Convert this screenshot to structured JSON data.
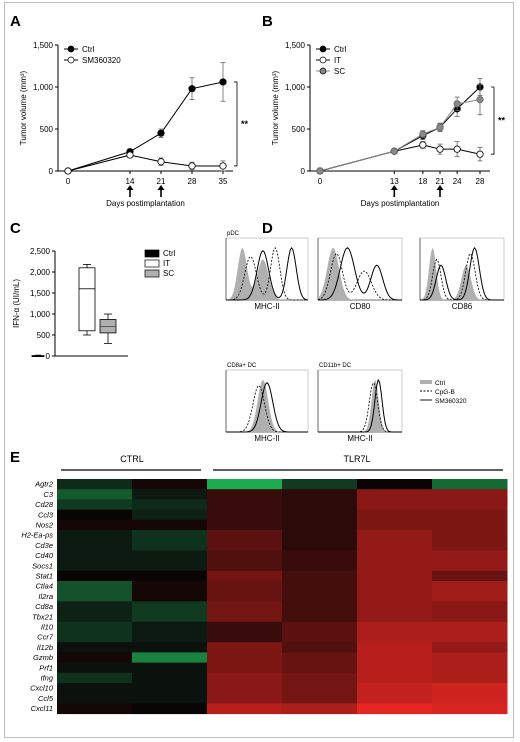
{
  "panels": {
    "A": {
      "letter": "A"
    },
    "B": {
      "letter": "B"
    },
    "C": {
      "letter": "C"
    },
    "D": {
      "letter": "D"
    },
    "E": {
      "letter": "E"
    }
  },
  "colors": {
    "black": "#000000",
    "gray": "#888888",
    "light_gray": "#bdbdbd",
    "heat_green": "#1fa84a",
    "heat_red": "#e5302a"
  },
  "chart_data": [
    {
      "panel": "A",
      "type": "line",
      "xlabel": "Days postimplantation",
      "ylabel": "Tumor volume (mm³)",
      "x": [
        0,
        14,
        21,
        28,
        35
      ],
      "xticks": [
        "0",
        "14",
        "21",
        "28",
        "35"
      ],
      "yticks": [
        "0",
        "500",
        "1,000",
        "1,500"
      ],
      "ylim": [
        0,
        1500
      ],
      "arrows_at": [
        14,
        21
      ],
      "series": [
        {
          "name": "Ctrl",
          "marker": "filled",
          "values": [
            0,
            230,
            450,
            980,
            1060
          ],
          "err": [
            0,
            20,
            50,
            130,
            230
          ]
        },
        {
          "name": "SM360320",
          "marker": "open",
          "values": [
            0,
            190,
            110,
            60,
            60
          ],
          "err": [
            0,
            20,
            45,
            45,
            60
          ]
        }
      ],
      "significance": "**",
      "legend": "top-left"
    },
    {
      "panel": "B",
      "type": "line",
      "xlabel": "Days postimplantation",
      "ylabel": "Tumor volume (mm³)",
      "x": [
        0,
        13,
        18,
        21,
        24,
        28
      ],
      "xticks": [
        "0",
        "13",
        "18",
        "21",
        "24",
        "28"
      ],
      "yticks": [
        "0",
        "500",
        "1,000",
        "1,500"
      ],
      "ylim": [
        0,
        1500
      ],
      "arrows_at": [
        13,
        21
      ],
      "series": [
        {
          "name": "Ctrl",
          "marker": "filled",
          "values": [
            0,
            235,
            420,
            520,
            740,
            1000
          ],
          "err": [
            0,
            20,
            45,
            50,
            90,
            100
          ]
        },
        {
          "name": "IT",
          "marker": "open",
          "values": [
            0,
            235,
            310,
            260,
            260,
            200
          ],
          "err": [
            0,
            20,
            40,
            60,
            90,
            80
          ]
        },
        {
          "name": "SC",
          "marker": "gray",
          "values": [
            0,
            235,
            440,
            520,
            800,
            850
          ],
          "err": [
            0,
            20,
            40,
            40,
            80,
            180
          ]
        }
      ],
      "significance": "**",
      "legend": "top-left"
    },
    {
      "panel": "C",
      "type": "box",
      "ylabel": "IFN-α (UI/mL)",
      "yticks": [
        "0",
        "500",
        "1,000",
        "1,500",
        "2,000",
        "2,500"
      ],
      "ylim": [
        0,
        2500
      ],
      "series": [
        {
          "name": "Ctrl",
          "fill": "#000000",
          "min": 0,
          "q1": 0,
          "median": 0,
          "q3": 10,
          "max": 20
        },
        {
          "name": "IT",
          "fill": "#ffffff",
          "min": 500,
          "q1": 600,
          "median": 1600,
          "q3": 2100,
          "max": 2180
        },
        {
          "name": "SC",
          "fill": "#b0b0b0",
          "min": 300,
          "q1": 550,
          "median": 700,
          "q3": 870,
          "max": 1000
        }
      ],
      "legend": "top-right"
    },
    {
      "panel": "D",
      "type": "histogram",
      "groups": [
        {
          "label": "pDC",
          "plots": [
            "MHC-II",
            "CD80",
            "CD86"
          ]
        },
        {
          "label": "CD8a+ DC",
          "plots": [
            "MHC-II"
          ]
        },
        {
          "label": "CD11b+ DC",
          "plots": [
            "MHC-II"
          ]
        }
      ],
      "legend": [
        {
          "name": "Ctrl",
          "style": "gray-filled"
        },
        {
          "name": "CpG-B",
          "style": "dashed"
        },
        {
          "name": "SM360320",
          "style": "solid"
        }
      ]
    },
    {
      "panel": "E",
      "type": "heatmap",
      "group_labels": [
        "CTRL",
        "TLR7L"
      ],
      "genes": [
        "Agtr2",
        "C3",
        "Cd28",
        "Ccl3",
        "Nos2",
        "H2-Ea-ps",
        "Cd3e",
        "Cd40",
        "Socs1",
        "Stat1",
        "Ctla4",
        "Il2ra",
        "Cd8a",
        "Tbx21",
        "Il10",
        "Ccr7",
        "Il12b",
        "Gzmb",
        "Prf1",
        "Ifng",
        "Cxcl10",
        "Ccl5",
        "Cxcl11"
      ],
      "columns": 6,
      "values": [
        [
          -0.2,
          0.05,
          -1.0,
          -0.3,
          0.0,
          -0.6
        ],
        [
          -0.5,
          -0.1,
          0.2,
          0.15,
          0.55,
          0.55
        ],
        [
          -0.3,
          -0.2,
          0.2,
          0.15,
          0.55,
          0.55
        ],
        [
          0.0,
          -0.15,
          0.2,
          0.15,
          0.5,
          0.5
        ],
        [
          0.05,
          0.05,
          0.2,
          0.15,
          0.5,
          0.5
        ],
        [
          -0.1,
          -0.25,
          0.35,
          0.15,
          0.6,
          0.5
        ],
        [
          -0.1,
          -0.25,
          0.35,
          0.15,
          0.6,
          0.5
        ],
        [
          -0.1,
          -0.1,
          0.3,
          0.2,
          0.6,
          0.6
        ],
        [
          -0.1,
          -0.1,
          0.3,
          0.2,
          0.6,
          0.6
        ],
        [
          0.0,
          0.0,
          0.45,
          0.25,
          0.6,
          0.4
        ],
        [
          -0.45,
          0.05,
          0.4,
          0.25,
          0.6,
          0.65
        ],
        [
          -0.45,
          0.05,
          0.4,
          0.25,
          0.6,
          0.65
        ],
        [
          -0.15,
          -0.3,
          0.45,
          0.25,
          0.6,
          0.55
        ],
        [
          -0.15,
          -0.3,
          0.45,
          0.25,
          0.6,
          0.55
        ],
        [
          -0.25,
          -0.1,
          0.2,
          0.35,
          0.7,
          0.7
        ],
        [
          -0.25,
          -0.1,
          0.2,
          0.35,
          0.7,
          0.7
        ],
        [
          -0.05,
          -0.05,
          0.5,
          0.3,
          0.75,
          0.6
        ],
        [
          0.05,
          -0.75,
          0.5,
          0.4,
          0.75,
          0.7
        ],
        [
          -0.05,
          -0.05,
          0.5,
          0.4,
          0.75,
          0.7
        ],
        [
          -0.25,
          -0.05,
          0.55,
          0.45,
          0.75,
          0.7
        ],
        [
          -0.05,
          -0.05,
          0.55,
          0.45,
          0.8,
          0.85
        ],
        [
          -0.05,
          -0.05,
          0.55,
          0.45,
          0.8,
          0.85
        ],
        [
          0.05,
          0.0,
          0.75,
          0.7,
          0.95,
          0.9
        ]
      ]
    }
  ]
}
